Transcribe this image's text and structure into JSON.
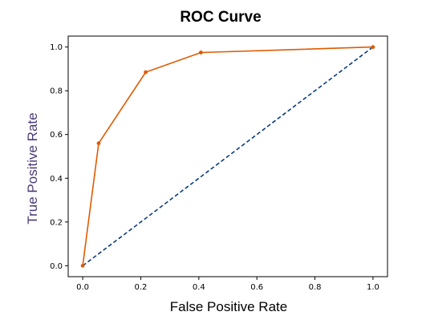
{
  "chart_data": {
    "type": "line",
    "title": "ROC Curve",
    "xlabel": "False Positive Rate",
    "ylabel": "True Positive Rate",
    "xlim": [
      -0.05,
      1.05
    ],
    "ylim": [
      -0.05,
      1.05
    ],
    "xticks": [
      "0.0",
      "0.2",
      "0.4",
      "0.6",
      "0.8",
      "1.0"
    ],
    "yticks": [
      "0.0",
      "0.2",
      "0.4",
      "0.6",
      "0.8",
      "1.0"
    ],
    "grid": false,
    "series": [
      {
        "style": "solid-with-markers",
        "color": "#e05a00",
        "x": [
          0.0,
          0.055,
          0.217,
          0.407,
          1.0
        ],
        "y": [
          0.0,
          0.56,
          0.885,
          0.975,
          1.0
        ]
      },
      {
        "style": "dashed",
        "color": "#0b3d7a",
        "x": [
          0.0,
          1.0
        ],
        "y": [
          0.0,
          1.0
        ]
      }
    ],
    "ylabel_color": "#4b3a78"
  }
}
